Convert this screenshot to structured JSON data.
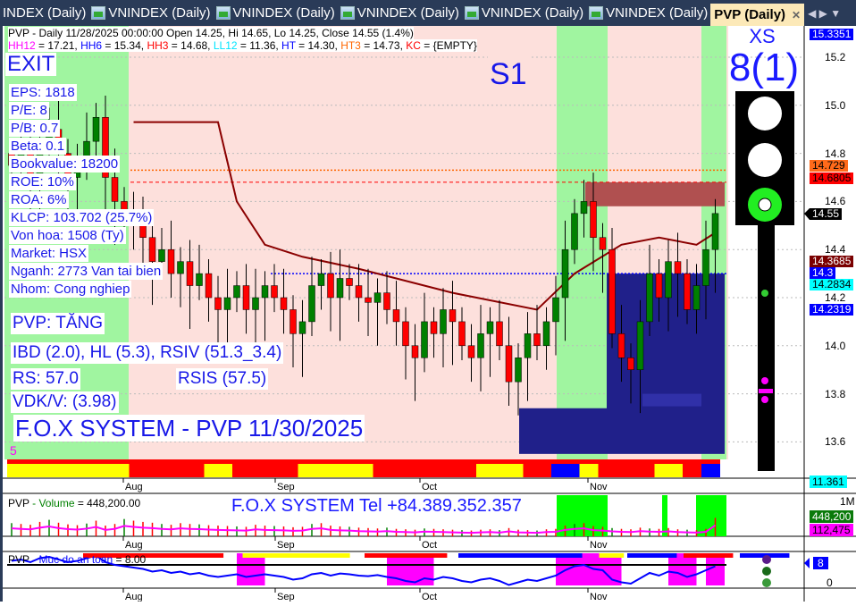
{
  "tabs": [
    {
      "label": "INDEX (Daily)"
    },
    {
      "label": "VNINDEX (Daily)"
    },
    {
      "label": "VNINDEX (Daily)"
    },
    {
      "label": "VNINDEX (Daily)"
    },
    {
      "label": "VNINDEX (Daily)"
    },
    {
      "label": "VNINDEX (Daily)"
    },
    {
      "label": "PVP (Daily)",
      "active": true
    }
  ],
  "header": {
    "line1": "PVP - Daily 11/28/2025 00:00:00 Open 14.25, Hi 14.65, Lo 14.25, Close 14.55 (1.4%)",
    "indicators": [
      {
        "name": "HH12",
        "value": " = 17.21, ",
        "color": "#ff00ff"
      },
      {
        "name": "HH6",
        "value": " = 15.34, ",
        "color": "#0000ff"
      },
      {
        "name": "HH3",
        "value": " = 14.68, ",
        "color": "#ff0000"
      },
      {
        "name": "LL12",
        "value": " = 11.36, ",
        "color": "#00e5ff"
      },
      {
        "name": "HT",
        "value": "  = 14.30, ",
        "color": "#0000ff"
      },
      {
        "name": "HT3",
        "value": "  = 14.73, ",
        "color": "#ff6600"
      },
      {
        "name": "KC",
        "value": " = {EMPTY}",
        "color": "#ff0000"
      }
    ]
  },
  "overlay": {
    "exit": "EXIT",
    "s1": "S1",
    "fundamentals": [
      "EPS: 1818",
      "P/E: 8",
      "P/B: 0.7",
      "Beta: 0.1",
      "Bookvalue: 18200",
      "ROE: 10%",
      "ROA: 6%",
      "KLCP: 103.702 (25.7%)",
      "Von hoa: 1508 (Ty)",
      "Market: HSX",
      "Nganh: 2773 Van tai bien",
      "Nhom: Cong nghiep"
    ],
    "trend": "PVP: TĂNG",
    "ibd": "IBD (2.0), HL (5.3), RSIV (51.3_3.4)",
    "rs": "RS: 57.0",
    "rsis": "RSIS (57.5)",
    "vdk": "VDK/V:  (3.98)",
    "system": "F.O.X SYSTEM - PVP 11/30/2025",
    "small_num": "5"
  },
  "signal": {
    "label": "XS",
    "value": "8(1)",
    "light": "green"
  },
  "price_axis": {
    "ticks": [
      "15.2",
      "15.0",
      "14.8",
      "14.6",
      "14.4",
      "14.2",
      "14.0",
      "13.8",
      "13.6"
    ],
    "labels": [
      {
        "text": "15.3351",
        "bg": "#0000ff",
        "fg": "#fff",
        "price": 15.3351
      },
      {
        "text": "14.729",
        "bg": "#ff6a1a",
        "fg": "#000",
        "price": 14.74
      },
      {
        "text": "14.6805",
        "bg": "#ff0000",
        "fg": "#000",
        "price": 14.68
      },
      {
        "text": "14.55",
        "bg": "#000",
        "fg": "#fff",
        "price": 14.55
      },
      {
        "text": "14.3685",
        "bg": "#7a0000",
        "fg": "#fff",
        "price": 14.3685
      },
      {
        "text": "14.3",
        "bg": "#0000ff",
        "fg": "#fff",
        "price": 14.3
      },
      {
        "text": "14.2834",
        "bg": "#00ffff",
        "fg": "#000",
        "price": 14.2834
      },
      {
        "text": "14.2319",
        "bg": "#0000ff",
        "fg": "#fff",
        "price": 14.2319
      },
      {
        "text": "11.361",
        "bg": "#00ffff",
        "fg": "#000",
        "price": 13.45
      }
    ]
  },
  "months": [
    "Aug",
    "Sep",
    "Oct",
    "Nov"
  ],
  "volume_panel": {
    "title_sym": "PVP",
    "title_label": " - Volume",
    "title_value": " = 448,200.00",
    "banner": "F.O.X SYSTEM Tel +84.389.352.357",
    "axis_top": "1M",
    "label_vol": "448,200",
    "label_avg": "112,475"
  },
  "safety_panel": {
    "title_sym": "PVP",
    "title_label": " - Muc do an toan",
    "title_value": " = 8.00",
    "axis_zero": "0",
    "label_value": "8"
  },
  "colors": {
    "up": "#008000",
    "down": "#ff0000",
    "green_zone": "#a0f5a0",
    "pink_zone": "#fde0dc",
    "box": "#20208a"
  },
  "chart_data": {
    "type": "candlestick",
    "months": [
      "Aug",
      "Sep",
      "Oct",
      "Nov"
    ],
    "ylim": [
      13.5,
      15.35
    ],
    "close": [
      14.75,
      14.8,
      14.7,
      14.85,
      14.9,
      14.8,
      14.7,
      14.75,
      14.85,
      14.95,
      14.7,
      14.6,
      14.55,
      14.5,
      14.45,
      14.35,
      14.4,
      14.3,
      14.35,
      14.25,
      14.3,
      14.2,
      14.15,
      14.2,
      14.25,
      14.15,
      14.2,
      14.25,
      14.2,
      14.15,
      14.05,
      14.1,
      14.25,
      14.3,
      14.2,
      14.28,
      14.25,
      14.2,
      14.18,
      14.22,
      14.15,
      14.1,
      14.0,
      13.95,
      14.1,
      14.05,
      14.15,
      14.1,
      14.0,
      13.95,
      14.05,
      14.1,
      14.0,
      13.85,
      13.95,
      14.05,
      14.0,
      14.1,
      14.2,
      14.4,
      14.55,
      14.6,
      14.45,
      14.4,
      14.05,
      13.95,
      13.9,
      14.1,
      14.3,
      14.2,
      14.35,
      14.3,
      14.15,
      14.25,
      14.4,
      14.55
    ],
    "ht_line": [
      [
        13,
        14.93
      ],
      [
        22,
        14.93
      ],
      [
        24,
        14.6
      ],
      [
        27,
        14.42
      ],
      [
        31,
        14.37
      ],
      [
        37,
        14.32
      ],
      [
        47,
        14.22
      ],
      [
        56,
        14.15
      ],
      [
        60,
        14.3
      ],
      [
        65,
        14.42
      ],
      [
        69,
        14.45
      ],
      [
        73,
        14.42
      ],
      [
        75,
        14.47
      ]
    ],
    "levels": {
      "ht3": 14.73,
      "hh3": 14.68,
      "ht": 14.3
    },
    "volume": [
      320,
      300,
      280,
      350,
      400,
      330,
      290,
      270,
      310,
      380,
      260,
      300,
      420,
      380,
      350,
      330,
      300,
      280,
      320,
      300,
      290,
      270,
      260,
      250,
      240,
      230,
      280,
      260,
      250,
      240,
      220,
      230,
      300,
      320,
      260,
      240,
      230,
      210,
      200,
      190,
      210,
      180,
      170,
      160,
      190,
      180,
      170,
      160,
      150,
      140,
      160,
      170,
      150,
      200,
      160,
      150,
      140,
      170,
      180,
      260,
      300,
      320,
      250,
      230,
      200,
      180,
      170,
      210,
      190,
      180,
      200,
      170,
      160,
      150,
      180,
      448
    ]
  }
}
